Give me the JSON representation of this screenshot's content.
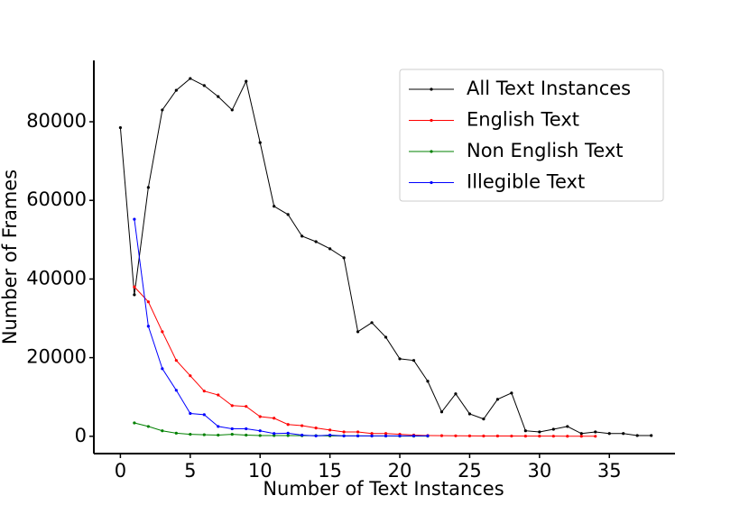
{
  "chart_data": {
    "type": "line",
    "xlabel": "Number of Text Instances",
    "ylabel": "Number of Frames",
    "x": [
      0,
      1,
      2,
      3,
      4,
      5,
      6,
      7,
      8,
      9,
      10,
      11,
      12,
      13,
      14,
      15,
      16,
      17,
      18,
      19,
      20,
      21,
      22,
      23,
      24,
      25,
      26,
      27,
      28,
      29,
      30,
      31,
      32,
      33,
      34,
      35,
      36,
      37,
      38
    ],
    "series": [
      {
        "name": "All Text Instances",
        "color": "#000000",
        "values": [
          78500,
          36000,
          63300,
          83000,
          88000,
          91000,
          89200,
          86400,
          83000,
          90300,
          74700,
          58500,
          56400,
          50900,
          49500,
          47700,
          45400,
          26600,
          28900,
          25200,
          19700,
          19300,
          14000,
          6200,
          10800,
          5700,
          4400,
          9400,
          11000,
          1400,
          1100,
          1800,
          2500,
          700,
          1100,
          700,
          700,
          200,
          200
        ]
      },
      {
        "name": "English Text",
        "color": "#ff0000",
        "values": [
          null,
          38000,
          34200,
          26600,
          19300,
          15400,
          11500,
          10500,
          7800,
          7600,
          5000,
          4600,
          3000,
          2700,
          2100,
          1600,
          1100,
          1100,
          700,
          700,
          500,
          300,
          200,
          150,
          120,
          100,
          80,
          70,
          60,
          50,
          40,
          30,
          20,
          10,
          5,
          null,
          null,
          null,
          null
        ]
      },
      {
        "name": "Non English Text",
        "color": "#008000",
        "values": [
          null,
          3400,
          2500,
          1400,
          800,
          500,
          400,
          300,
          500,
          300,
          200,
          200,
          200,
          150,
          150,
          100,
          100,
          100,
          80,
          60,
          50,
          40,
          30,
          null,
          null,
          null,
          null,
          null,
          null,
          null,
          null,
          null,
          null,
          null,
          null,
          null,
          null,
          null,
          null
        ]
      },
      {
        "name": "Illegible Text",
        "color": "#0000ff",
        "values": [
          null,
          55200,
          28000,
          17200,
          11700,
          5800,
          5500,
          2500,
          1900,
          1900,
          1400,
          700,
          800,
          300,
          100,
          300,
          100,
          100,
          100,
          100,
          100,
          100,
          100,
          null,
          null,
          null,
          null,
          null,
          null,
          null,
          null,
          null,
          null,
          null,
          null,
          null,
          null,
          null,
          null
        ]
      }
    ],
    "xlim": [
      -1.9,
      39.7
    ],
    "ylim": [
      -4400,
      95600
    ],
    "xticks": [
      0,
      5,
      10,
      15,
      20,
      25,
      30,
      35
    ],
    "yticks": [
      0,
      20000,
      40000,
      60000,
      80000
    ],
    "legend": "upper right"
  }
}
